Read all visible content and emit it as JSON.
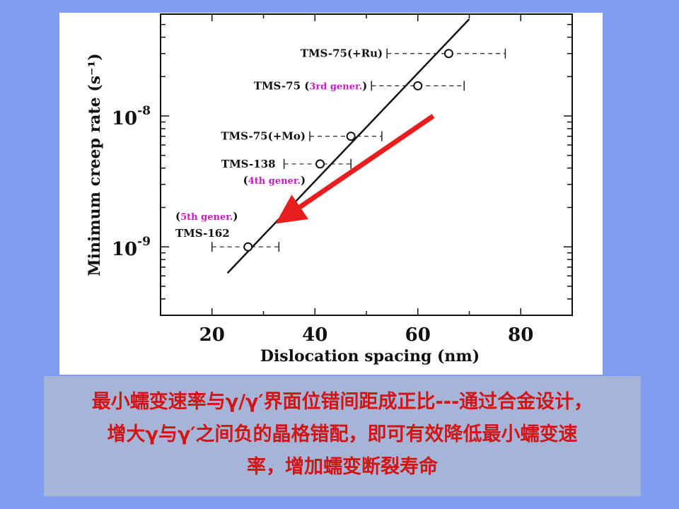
{
  "chart_data": {
    "type": "scatter",
    "xlabel": "Dislocation spacing (nm)",
    "ylabel": "Minimum creep rate (s⁻¹)",
    "xlim": [
      10,
      90
    ],
    "ylim": [
      3e-10,
      6e-08
    ],
    "yscale": "log",
    "xticks": [
      20,
      40,
      60,
      80
    ],
    "xtick_labels": [
      "20",
      "40",
      "60",
      "80"
    ],
    "yticks_labeled": [
      1e-09,
      1e-08
    ],
    "ytick_labels": [
      {
        "base": "10",
        "exp": "-9"
      },
      {
        "base": "10",
        "exp": "-8"
      }
    ],
    "points": [
      {
        "name": "TMS-75(+Ru)",
        "note": "",
        "x": 66,
        "y": 3e-08,
        "x_err": [
          54,
          77
        ]
      },
      {
        "name": "TMS-75",
        "note": "3rd gener.",
        "x": 60,
        "y": 1.7e-08,
        "x_err": [
          51,
          69
        ]
      },
      {
        "name": "TMS-75(+Mo)",
        "note": "",
        "x": 47,
        "y": 7e-09,
        "x_err": [
          39,
          53
        ]
      },
      {
        "name": "TMS-138",
        "note": "4th gener.",
        "x": 41,
        "y": 4.3e-09,
        "x_err": [
          34,
          47
        ]
      },
      {
        "name": "TMS-162",
        "note": "5th gener.",
        "x": 27,
        "y": 1e-09,
        "x_err": [
          20,
          33
        ]
      }
    ],
    "fit_line": {
      "x": [
        23,
        70
      ],
      "y": [
        6.3e-10,
        5.5e-08
      ]
    },
    "arrow": {
      "from": [
        63,
        1e-08
      ],
      "to": [
        34,
        1.5e-09
      ],
      "color": "#e81e1e"
    }
  },
  "caption": {
    "lines": [
      "最小蠕变速率与γ/γ′界面位错间距成正比---通过合金设计，",
      "增大γ与γ′之间负的晶格错配，即可有效降低最小蠕变速",
      "率，增加蠕变断裂寿命"
    ]
  },
  "colors": {
    "background": "#7f9ef0",
    "panel": "#ffffff",
    "caption_box": "#a6b4d8",
    "caption_text": "#d21414",
    "note_text": "#c520c5",
    "arrow": "#e81e1e"
  }
}
